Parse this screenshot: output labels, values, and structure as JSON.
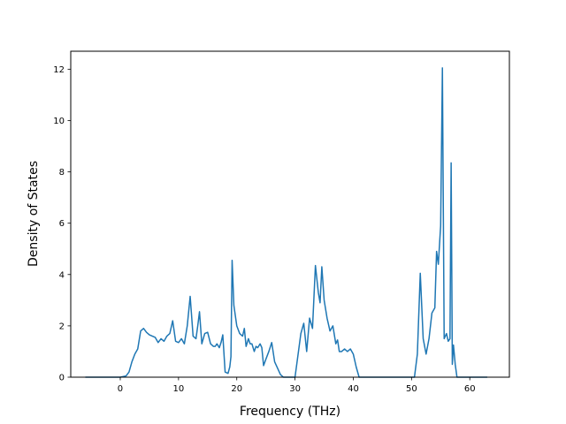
{
  "chart_data": {
    "type": "line",
    "title": "",
    "xlabel": "Frequency (THz)",
    "ylabel": "Density of States",
    "xlim": [
      -8.5,
      66.8
    ],
    "ylim": [
      0,
      12.7
    ],
    "xticks": [
      0,
      10,
      20,
      30,
      40,
      50,
      60
    ],
    "yticks": [
      0,
      2,
      4,
      6,
      8,
      10,
      12
    ],
    "grid": false,
    "legend": "none",
    "color": "#1f77b4",
    "series": [
      {
        "x": [
          -6,
          -4,
          -2,
          0,
          1,
          1.5,
          2,
          2.5,
          3,
          3.5,
          4,
          4.5,
          5,
          6,
          6.5,
          7,
          7.5,
          8,
          8.5,
          9,
          9.5,
          10,
          10.5,
          11,
          11.5,
          12,
          12.5,
          13,
          13.3,
          13.6,
          14,
          14.5,
          15,
          15.5,
          16,
          16.3,
          16.6,
          17,
          17.3,
          17.6,
          18,
          18.5,
          18.8,
          19,
          19.2,
          19.5,
          20,
          20.5,
          21,
          21.3,
          21.6,
          22,
          22.3,
          22.6,
          23,
          23.3,
          23.6,
          24,
          24.3,
          24.6,
          25,
          25.5,
          26,
          26.5,
          27,
          27.5,
          28,
          29,
          30,
          31,
          31.5,
          32,
          32.5,
          33,
          33.5,
          34,
          34.3,
          34.6,
          35,
          35.5,
          36,
          36.5,
          37,
          37.3,
          37.6,
          38,
          38.5,
          39,
          39.5,
          40,
          40.5,
          41,
          44,
          48,
          50,
          50.5,
          51,
          51.5,
          52,
          52.5,
          53,
          53.5,
          54,
          54.3,
          54.6,
          55,
          55.3,
          55.6,
          56,
          56.3,
          56.6,
          56.8,
          57,
          57.2,
          57.5,
          57.8,
          58,
          60,
          63
        ],
        "y": [
          0,
          0,
          0,
          0,
          0.05,
          0.2,
          0.6,
          0.9,
          1.1,
          1.8,
          1.9,
          1.75,
          1.65,
          1.55,
          1.35,
          1.5,
          1.4,
          1.6,
          1.7,
          2.2,
          1.4,
          1.35,
          1.5,
          1.3,
          2.0,
          3.15,
          1.6,
          1.5,
          2.0,
          2.55,
          1.3,
          1.7,
          1.75,
          1.3,
          1.2,
          1.2,
          1.3,
          1.15,
          1.35,
          1.65,
          0.2,
          0.15,
          0.4,
          0.8,
          4.55,
          2.8,
          2.0,
          1.7,
          1.6,
          1.9,
          1.2,
          1.5,
          1.3,
          1.3,
          1.0,
          1.2,
          1.15,
          1.3,
          1.15,
          0.45,
          0.7,
          1.0,
          1.35,
          0.6,
          0.35,
          0.1,
          0,
          0,
          0,
          1.7,
          2.1,
          1.0,
          2.3,
          1.9,
          4.35,
          3.3,
          2.9,
          4.3,
          3.0,
          2.3,
          1.8,
          2.0,
          1.3,
          1.45,
          1.0,
          1.0,
          1.1,
          1.0,
          1.1,
          0.9,
          0.4,
          0,
          0,
          0,
          0,
          0,
          0.9,
          4.05,
          1.5,
          0.9,
          1.5,
          2.5,
          2.7,
          4.9,
          4.4,
          5.9,
          12.05,
          1.5,
          1.7,
          1.4,
          1.5,
          8.35,
          0.5,
          1.25,
          0.5,
          0,
          0,
          0,
          0
        ]
      }
    ]
  }
}
